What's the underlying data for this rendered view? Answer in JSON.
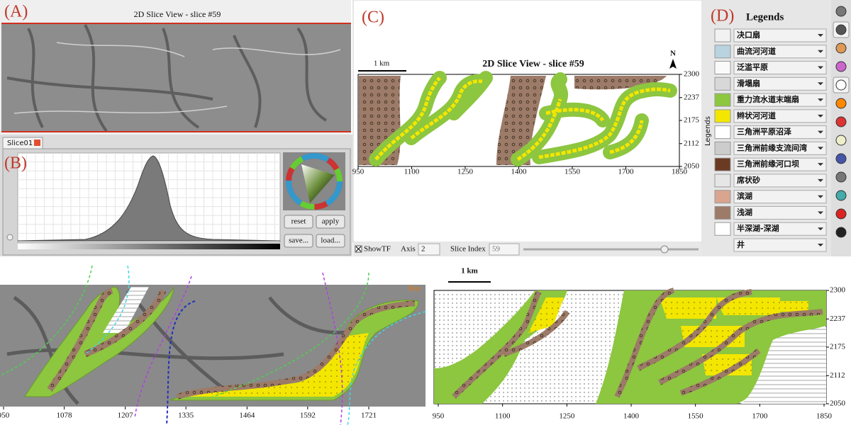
{
  "panel_labels": [
    "(A)",
    "(B)",
    "(C)",
    "(D)"
  ],
  "slice_view": {
    "title": "2D Slice View - slice #59"
  },
  "tab": "Slice01",
  "buttons": [
    "reset",
    "apply",
    "save...",
    "load..."
  ],
  "map_c": {
    "title": "2D Slice View - slice #59",
    "scale": "1 km",
    "north": "N",
    "xticks": [
      950,
      1100,
      1250,
      1400,
      1550,
      1700,
      1850
    ],
    "yticks": [
      2300,
      2237,
      2175,
      2112,
      2050
    ]
  },
  "controls": {
    "show_tf": "ShowTF",
    "axis_label": "Axis",
    "axis_value": 2,
    "slice_label": "Slice Index",
    "slice_value": 59
  },
  "legends": {
    "title": "Legends",
    "side_label": "Legends",
    "items": [
      {
        "label": "决口扇",
        "color": "#f2f2f2"
      },
      {
        "label": "曲流河河道",
        "color": "#b9d3e0"
      },
      {
        "label": "泛滥平原",
        "color": "#fafafa"
      },
      {
        "label": "滑塌扇",
        "color": "#d8d8d8"
      },
      {
        "label": "重力流水道末端扇",
        "color": "#8dc63f"
      },
      {
        "label": "辫状河河道",
        "color": "#f3e600"
      },
      {
        "label": "三角洲平原沼泽",
        "color": "#ffffff"
      },
      {
        "label": "三角洲前缘支流间湾",
        "color": "#cccccc"
      },
      {
        "label": "三角洲前缘河口坝",
        "color": "#6b3a22"
      },
      {
        "label": "席状砂",
        "color": "#e6e6e6"
      },
      {
        "label": "滨湖",
        "color": "#d9a58f"
      },
      {
        "label": "浅湖",
        "color": "#9c7b68"
      },
      {
        "label": "半深湖-深湖",
        "color": "#ffffff"
      },
      {
        "label": "井",
        "color": "#ffffff"
      }
    ]
  },
  "bottom_left": {
    "label": "No",
    "xticks": [
      950,
      1078,
      1207,
      1335,
      1464,
      1592,
      1721
    ]
  },
  "bottom_right": {
    "scale": "1 km",
    "xticks": [
      950,
      1100,
      1250,
      1400,
      1550,
      1700,
      1850
    ],
    "yticks": [
      2300,
      2237,
      2175,
      2112,
      2050
    ]
  }
}
